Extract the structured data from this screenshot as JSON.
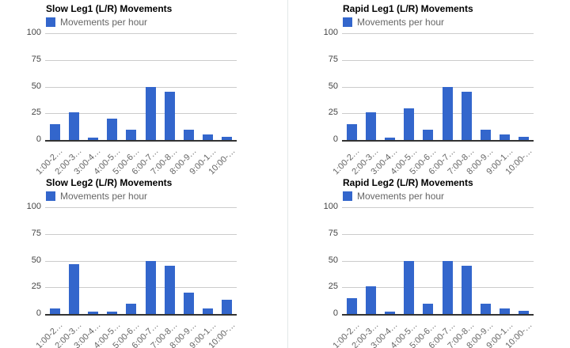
{
  "page": {
    "background": "#ffffff",
    "divider_color": "#e3e8e8"
  },
  "colors": {
    "bar": "#3366cc",
    "grid": "#cccccc",
    "baseline": "#333333",
    "title_text": "#000000",
    "legend_text": "#666666",
    "y_label_text": "#444444",
    "x_label_text": "#666666"
  },
  "chart_data": [
    {
      "id": "slow-leg1",
      "type": "bar",
      "title": "Slow Leg1 (L/R) Movements",
      "legend_label": "Movements per hour",
      "legend_position": "top",
      "grid": true,
      "ylim": [
        0,
        100
      ],
      "y_ticks": [
        100,
        75,
        50,
        25,
        0
      ],
      "xlabel": "",
      "ylabel": "",
      "categories": [
        "1:00-2…",
        "2:00-3…",
        "3:00-4…",
        "4:00-5…",
        "5:00-6…",
        "6:00-7…",
        "7:00-8…",
        "8:00-9…",
        "9:00-1…",
        "10:00-…"
      ],
      "values": [
        15,
        26,
        2,
        20,
        10,
        50,
        45,
        10,
        5,
        3
      ]
    },
    {
      "id": "rapid-leg1",
      "type": "bar",
      "title": "Rapid Leg1 (L/R) Movements",
      "legend_label": "Movements per hour",
      "legend_position": "top",
      "grid": true,
      "ylim": [
        0,
        100
      ],
      "y_ticks": [
        100,
        75,
        50,
        25,
        0
      ],
      "xlabel": "",
      "ylabel": "",
      "categories": [
        "1:00-2…",
        "2:00-3…",
        "3:00-4…",
        "4:00-5…",
        "5:00-6…",
        "6:00-7…",
        "7:00-8…",
        "8:00-9…",
        "9:00-1…",
        "10:00-…"
      ],
      "values": [
        15,
        26,
        2,
        30,
        10,
        50,
        45,
        10,
        5,
        3
      ]
    },
    {
      "id": "slow-leg2",
      "type": "bar",
      "title": "Slow Leg2 (L/R) Movements",
      "legend_label": "Movements per hour",
      "legend_position": "top",
      "grid": true,
      "ylim": [
        0,
        100
      ],
      "y_ticks": [
        100,
        75,
        50,
        25,
        0
      ],
      "xlabel": "",
      "ylabel": "",
      "categories": [
        "1:00-2…",
        "2:00-3…",
        "3:00-4…",
        "4:00-5…",
        "5:00-6…",
        "6:00-7…",
        "7:00-8…",
        "8:00-9…",
        "9:00-1…",
        "10:00-…"
      ],
      "values": [
        5,
        47,
        2,
        2,
        10,
        50,
        45,
        20,
        5,
        13
      ]
    },
    {
      "id": "rapid-leg2",
      "type": "bar",
      "title": "Rapid Leg2 (L/R) Movements",
      "legend_label": "Movements per hour",
      "legend_position": "top",
      "grid": true,
      "ylim": [
        0,
        100
      ],
      "y_ticks": [
        100,
        75,
        50,
        25,
        0
      ],
      "xlabel": "",
      "ylabel": "",
      "categories": [
        "1:00-2…",
        "2:00-3…",
        "3:00-4…",
        "4:00-5…",
        "5:00-6…",
        "6:00-7…",
        "7:00-8…",
        "8:00-9…",
        "9:00-1…",
        "10:00-…"
      ],
      "values": [
        15,
        26,
        2,
        50,
        10,
        50,
        45,
        10,
        5,
        3
      ]
    }
  ]
}
